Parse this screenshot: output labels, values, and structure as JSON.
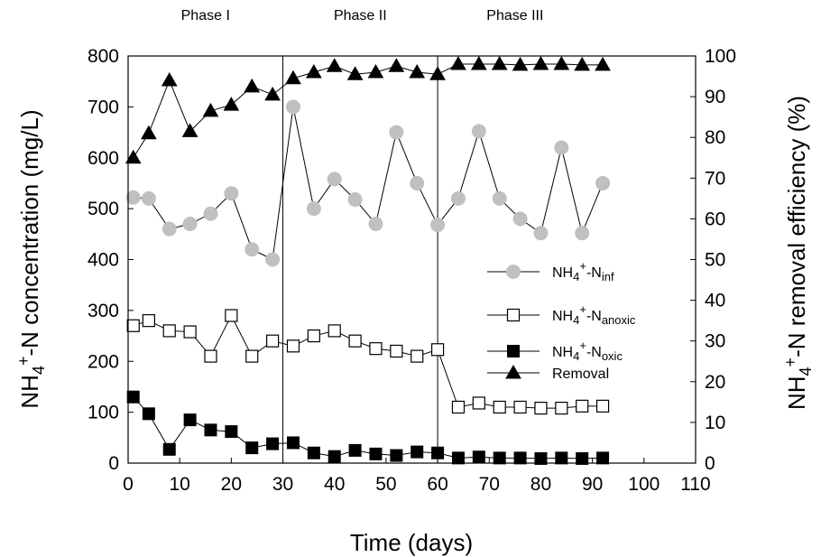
{
  "chart_data": {
    "type": "line",
    "xlabel": "Time (days)",
    "ylabel_left": {
      "base": "NH",
      "sub1": "4",
      "sup": "+",
      "rest": "-N concentration (mg/L)"
    },
    "ylabel_right": {
      "base": "NH",
      "sub1": "4",
      "sup": "+",
      "rest": "-N removal efficiency (%)"
    },
    "xlim": [
      0,
      110
    ],
    "ylim_left": [
      0,
      800
    ],
    "ylim_right": [
      0,
      100
    ],
    "x_ticks": [
      0,
      10,
      20,
      30,
      40,
      50,
      60,
      70,
      80,
      90,
      100,
      110
    ],
    "y_ticks_left": [
      0,
      100,
      200,
      300,
      400,
      500,
      600,
      700,
      800
    ],
    "y_ticks_right": [
      0,
      10,
      20,
      30,
      40,
      50,
      60,
      70,
      80,
      90,
      100
    ],
    "grid": false,
    "legend_position": "right-center",
    "phase_dividers": [
      30,
      60
    ],
    "phases": [
      {
        "label": "Phase I",
        "center_x": 15
      },
      {
        "label": "Phase II",
        "center_x": 45
      },
      {
        "label": "Phase III",
        "center_x": 75
      }
    ],
    "series": [
      {
        "name": "NH4+-Ninf",
        "legend": {
          "base": "NH",
          "sub1": "4",
          "sup": "+",
          "mid": "-N",
          "sub2": "inf"
        },
        "axis": "left",
        "marker": "circle",
        "color": "#c0c0c0",
        "x": [
          1,
          4,
          8,
          12,
          16,
          20,
          24,
          28,
          32,
          36,
          40,
          44,
          48,
          52,
          56,
          60,
          64,
          68,
          72,
          76,
          80,
          84,
          88,
          92
        ],
        "y": [
          522,
          520,
          460,
          470,
          490,
          530,
          420,
          400,
          700,
          500,
          558,
          518,
          470,
          650,
          550,
          468,
          520,
          652,
          520,
          480,
          452,
          620,
          452,
          550
        ]
      },
      {
        "name": "NH4+-Nanoxic",
        "legend": {
          "base": "NH",
          "sub1": "4",
          "sup": "+",
          "mid": "-N",
          "sub2": "anoxic"
        },
        "axis": "left",
        "marker": "square-open",
        "color": "#000000",
        "x": [
          1,
          4,
          8,
          12,
          16,
          20,
          24,
          28,
          32,
          36,
          40,
          44,
          48,
          52,
          56,
          60,
          64,
          68,
          72,
          76,
          80,
          84,
          88,
          92
        ],
        "y": [
          270,
          280,
          260,
          258,
          210,
          290,
          210,
          240,
          230,
          250,
          260,
          240,
          225,
          220,
          210,
          223,
          110,
          118,
          110,
          110,
          108,
          108,
          112,
          112
        ]
      },
      {
        "name": "NH4+-Noxic",
        "legend": {
          "base": "NH",
          "sub1": "4",
          "sup": "+",
          "mid": "-N",
          "sub2": "oxic"
        },
        "axis": "left",
        "marker": "square",
        "color": "#000000",
        "x": [
          1,
          4,
          8,
          12,
          16,
          20,
          24,
          28,
          32,
          36,
          40,
          44,
          48,
          52,
          56,
          60,
          64,
          68,
          72,
          76,
          80,
          84,
          88,
          92
        ],
        "y": [
          130,
          97,
          27,
          85,
          65,
          62,
          30,
          38,
          40,
          20,
          13,
          25,
          18,
          15,
          22,
          20,
          10,
          12,
          10,
          10,
          9,
          10,
          9,
          10
        ]
      },
      {
        "name": "Removal",
        "legend": {
          "base": "Removal"
        },
        "axis": "right",
        "marker": "triangle",
        "color": "#000000",
        "x": [
          1,
          4,
          8,
          12,
          16,
          20,
          24,
          28,
          32,
          36,
          40,
          44,
          48,
          52,
          56,
          60,
          64,
          68,
          72,
          76,
          80,
          84,
          88,
          92
        ],
        "y": [
          75,
          81,
          94,
          81.5,
          86.5,
          88,
          92.5,
          90.5,
          94.5,
          96,
          97.5,
          95.5,
          96,
          97.5,
          96,
          95.5,
          98,
          98,
          98,
          97.8,
          98,
          98,
          97.8,
          97.8
        ]
      }
    ]
  }
}
